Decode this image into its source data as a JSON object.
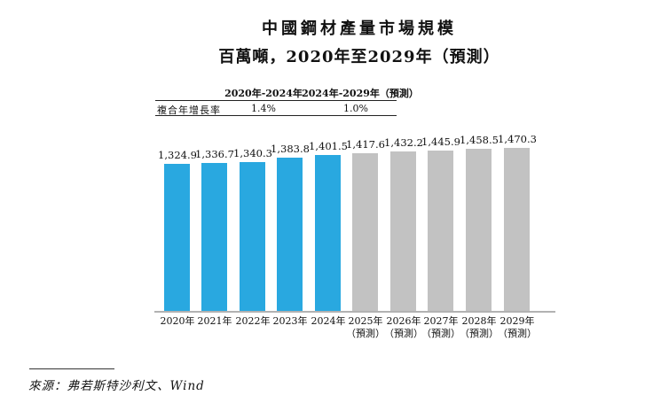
{
  "title": "中國鋼材產量市場規模",
  "subtitle": "百萬噸，2020年至2029年（預測）",
  "cagr_table": {
    "row_label": "複合年增長率",
    "columns": [
      {
        "period": "2020年-2024年",
        "value": "1.4%"
      },
      {
        "period": "2024年-2029年（預測）",
        "value": "1.0%"
      }
    ]
  },
  "chart_data": {
    "type": "bar",
    "title": "中國鋼材產量市場規模",
    "unit": "百萬噸",
    "x_range_label": "2020年至2029年（預測）",
    "ylim": [
      0,
      1500
    ],
    "grid": "off",
    "legend": "none",
    "bars": [
      {
        "category": "2020年",
        "suffix": "",
        "value": 1324.9,
        "label": "1,324.9",
        "series": "actual"
      },
      {
        "category": "2021年",
        "suffix": "",
        "value": 1336.7,
        "label": "1,336.7",
        "series": "actual"
      },
      {
        "category": "2022年",
        "suffix": "",
        "value": 1340.3,
        "label": "1,340.3",
        "series": "actual"
      },
      {
        "category": "2023年",
        "suffix": "",
        "value": 1383.8,
        "label": "1,383.8",
        "series": "actual"
      },
      {
        "category": "2024年",
        "suffix": "",
        "value": 1401.5,
        "label": "1,401.5",
        "series": "actual"
      },
      {
        "category": "2025年",
        "suffix": "（預測）",
        "value": 1417.6,
        "label": "1,417.6",
        "series": "forecast"
      },
      {
        "category": "2026年",
        "suffix": "（預測）",
        "value": 1432.2,
        "label": "1,432.2",
        "series": "forecast"
      },
      {
        "category": "2027年",
        "suffix": "（預測）",
        "value": 1445.9,
        "label": "1,445.9",
        "series": "forecast"
      },
      {
        "category": "2028年",
        "suffix": "（預測）",
        "value": 1458.5,
        "label": "1,458.5",
        "series": "forecast"
      },
      {
        "category": "2029年",
        "suffix": "（預測）",
        "value": 1470.3,
        "label": "1,470.3",
        "series": "forecast"
      }
    ],
    "series_colors": {
      "actual": "#29a8e0",
      "forecast": "#c2c2c2"
    }
  },
  "source": {
    "text": "來源：弗若斯特沙利文、Wind"
  }
}
